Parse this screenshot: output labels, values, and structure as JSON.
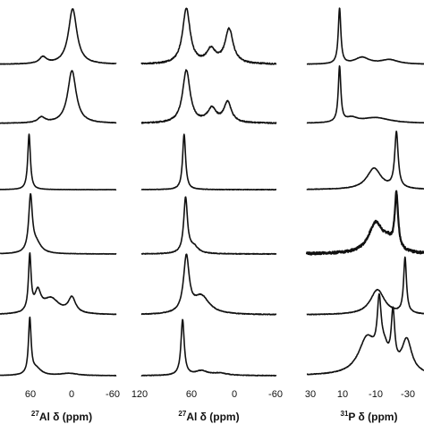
{
  "chart_data": [
    {
      "type": "line",
      "xlabel": {
        "sup": "27",
        "text": "Al δ (ppm)"
      },
      "xlim": [
        -60,
        100
      ],
      "xticks": [
        {
          "value": 60,
          "label": "60"
        },
        {
          "value": 0,
          "label": "0"
        },
        {
          "value": -60,
          "label": "-60"
        }
      ],
      "reversed_x": true,
      "series": [
        {
          "peaks": [
            [
              0,
              1.0,
              7
            ],
            [
              41,
              0.12,
              6
            ]
          ],
          "noise": 0.004
        },
        {
          "peaks": [
            [
              1,
              0.95,
              7
            ],
            [
              43,
              0.1,
              6
            ]
          ],
          "noise": 0.004
        },
        {
          "peaks": [
            [
              60,
              1.0,
              2.2
            ]
          ],
          "noise": 0.002
        },
        {
          "peaks": [
            [
              58,
              1.0,
              3.0
            ],
            [
              50,
              0.18,
              8
            ]
          ],
          "noise": 0.003
        },
        {
          "peaks": [
            [
              59,
              1.0,
              2.2
            ],
            [
              48,
              0.35,
              5
            ],
            [
              30,
              0.28,
              14
            ],
            [
              1,
              0.28,
              6
            ]
          ],
          "noise": 0.004
        },
        {
          "peaks": [
            [
              59,
              1.0,
              2.2
            ],
            [
              50,
              0.12,
              8
            ],
            [
              5,
              0.04,
              14
            ]
          ],
          "noise": 0.003
        }
      ]
    },
    {
      "type": "line",
      "xlabel": {
        "sup": "27",
        "text": "Al δ (ppm)"
      },
      "xlim": [
        -60,
        120
      ],
      "xticks": [
        {
          "value": 120,
          "label": "120"
        },
        {
          "value": 60,
          "label": "60"
        },
        {
          "value": 0,
          "label": "0"
        },
        {
          "value": -60,
          "label": "-60"
        }
      ],
      "reversed_x": true,
      "series": [
        {
          "peaks": [
            [
              60,
              1.0,
              6
            ],
            [
              27,
              0.25,
              7
            ],
            [
              3,
              0.62,
              6.5
            ]
          ],
          "noise": 0.012
        },
        {
          "peaks": [
            [
              60,
              0.95,
              6
            ],
            [
              26,
              0.25,
              7
            ],
            [
              5,
              0.37,
              6
            ]
          ],
          "noise": 0.01
        },
        {
          "peaks": [
            [
              63,
              1.0,
              2.4
            ]
          ],
          "noise": 0.004
        },
        {
          "peaks": [
            [
              61,
              1.0,
              3.0
            ],
            [
              50,
              0.12,
              7
            ]
          ],
          "noise": 0.006
        },
        {
          "peaks": [
            [
              60,
              1.0,
              4.5
            ],
            [
              40,
              0.32,
              13
            ]
          ],
          "noise": 0.006
        },
        {
          "peaks": [
            [
              65,
              1.0,
              2.6
            ],
            [
              40,
              0.08,
              10
            ],
            [
              15,
              0.04,
              12
            ]
          ],
          "noise": 0.005
        }
      ]
    },
    {
      "type": "line",
      "xlabel": {
        "sup": "31",
        "text": "P δ (ppm)"
      },
      "xlim": [
        -38,
        30
      ],
      "xticks": [
        {
          "value": 30,
          "label": "30"
        },
        {
          "value": 10,
          "label": "10"
        },
        {
          "value": -10,
          "label": "-10"
        },
        {
          "value": -30,
          "label": "-30"
        }
      ],
      "reversed_x": true,
      "series": [
        {
          "peaks": [
            [
              11,
              1.0,
              0.9
            ],
            [
              -2,
              0.12,
              5
            ],
            [
              -18,
              0.08,
              6
            ]
          ],
          "noise": 0.003
        },
        {
          "peaks": [
            [
              11,
              1.0,
              0.9
            ],
            [
              4,
              0.08,
              4
            ],
            [
              -10,
              0.1,
              10
            ]
          ],
          "noise": 0.003
        },
        {
          "peaks": [
            [
              -22,
              1.0,
              1.2
            ],
            [
              -9,
              0.38,
              5
            ]
          ],
          "noise": 0.004
        },
        {
          "peaks": [
            [
              -22,
              1.0,
              1.2
            ],
            [
              -10,
              0.55,
              5
            ],
            [
              -17,
              0.15,
              3
            ]
          ],
          "noise": 0.02
        },
        {
          "peaks": [
            [
              -27,
              1.0,
              1.0
            ],
            [
              -11,
              0.45,
              5
            ]
          ],
          "noise": 0.005
        },
        {
          "peaks": [
            [
              -5,
              0.65,
              6
            ],
            [
              -12,
              1.0,
              1.4
            ],
            [
              -20,
              0.95,
              1.2
            ],
            [
              -28,
              0.6,
              3.5
            ],
            [
              -15,
              0.3,
              3
            ]
          ],
          "noise": 0.005
        }
      ]
    }
  ]
}
